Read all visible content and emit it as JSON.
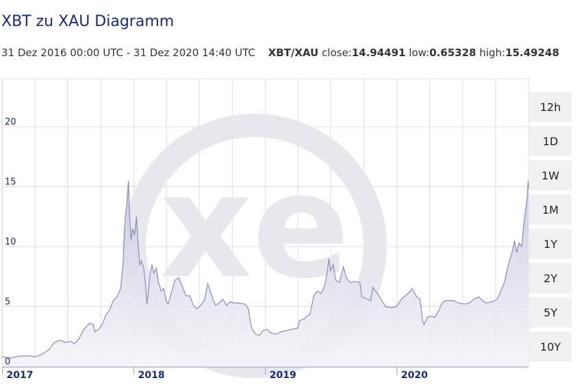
{
  "header": {
    "title": "XBT zu XAU Diagramm",
    "range": "31 Dez 2016 00:00 UTC - 31 Dez 2020 14:40 UTC",
    "pair": "XBT/XAU",
    "close_label": "close:",
    "close_value": "14.94491",
    "low_label": "low:",
    "low_value": "0.65328",
    "high_label": "high:",
    "high_value": "15.49248"
  },
  "range_buttons": [
    "12h",
    "1D",
    "1W",
    "1M",
    "1Y",
    "2Y",
    "5Y",
    "10Y"
  ],
  "colors": {
    "line": "#8e93b8",
    "fill_top": "#c9cbe0",
    "fill_bottom": "#f4f4f8",
    "grid": "#dcdcdc",
    "axis_text": "#1a2a7a",
    "watermark": "#e7e7ee"
  },
  "watermark_icon": "xe-logo",
  "chart_data": {
    "type": "area",
    "title": "XBT zu XAU Diagramm",
    "xlabel": "",
    "ylabel": "",
    "ylim": [
      0,
      24
    ],
    "xlim": [
      "2016-12-31",
      "2020-12-31"
    ],
    "y_ticks": [
      0,
      5,
      10,
      15,
      20
    ],
    "x_tick_labels": [
      {
        "label": "2017",
        "date": "2017-01-01"
      },
      {
        "label": "2018",
        "date": "2018-01-01"
      },
      {
        "label": "2019",
        "date": "2019-01-01"
      },
      {
        "label": "2020",
        "date": "2020-01-01"
      }
    ],
    "grid": true,
    "series": [
      {
        "points": [
          [
            "2016-12-31",
            0.82
          ],
          [
            "2017-01-20",
            0.7
          ],
          [
            "2017-02-15",
            0.85
          ],
          [
            "2017-03-15",
            0.9
          ],
          [
            "2017-04-01",
            0.8
          ],
          [
            "2017-04-20",
            1.0
          ],
          [
            "2017-05-10",
            1.4
          ],
          [
            "2017-05-25",
            2.0
          ],
          [
            "2017-06-10",
            2.2
          ],
          [
            "2017-06-25",
            2.0
          ],
          [
            "2017-07-10",
            2.1
          ],
          [
            "2017-07-20",
            1.9
          ],
          [
            "2017-08-01",
            2.3
          ],
          [
            "2017-08-15",
            3.1
          ],
          [
            "2017-08-30",
            3.6
          ],
          [
            "2017-09-10",
            3.5
          ],
          [
            "2017-09-15",
            2.9
          ],
          [
            "2017-09-25",
            3.1
          ],
          [
            "2017-10-05",
            3.5
          ],
          [
            "2017-10-15",
            4.3
          ],
          [
            "2017-10-25",
            4.7
          ],
          [
            "2017-11-05",
            5.5
          ],
          [
            "2017-11-15",
            5.8
          ],
          [
            "2017-11-25",
            6.5
          ],
          [
            "2017-12-02",
            8.7
          ],
          [
            "2017-12-08",
            12.5
          ],
          [
            "2017-12-12",
            13.5
          ],
          [
            "2017-12-17",
            15.5
          ],
          [
            "2017-12-20",
            12.5
          ],
          [
            "2017-12-24",
            10.5
          ],
          [
            "2017-12-28",
            11.5
          ],
          [
            "2018-01-03",
            11.0
          ],
          [
            "2018-01-08",
            12.5
          ],
          [
            "2018-01-12",
            10.5
          ],
          [
            "2018-01-17",
            8.5
          ],
          [
            "2018-01-22",
            8.8
          ],
          [
            "2018-01-28",
            8.2
          ],
          [
            "2018-02-02",
            6.8
          ],
          [
            "2018-02-06",
            5.2
          ],
          [
            "2018-02-10",
            6.2
          ],
          [
            "2018-02-15",
            7.8
          ],
          [
            "2018-02-20",
            8.5
          ],
          [
            "2018-02-25",
            7.8
          ],
          [
            "2018-03-04",
            8.2
          ],
          [
            "2018-03-10",
            7.0
          ],
          [
            "2018-03-18",
            6.3
          ],
          [
            "2018-03-25",
            6.5
          ],
          [
            "2018-04-01",
            5.4
          ],
          [
            "2018-04-06",
            5.2
          ],
          [
            "2018-04-15",
            6.2
          ],
          [
            "2018-04-25",
            7.2
          ],
          [
            "2018-05-05",
            7.4
          ],
          [
            "2018-05-15",
            6.7
          ],
          [
            "2018-05-25",
            5.9
          ],
          [
            "2018-06-05",
            5.9
          ],
          [
            "2018-06-15",
            5.1
          ],
          [
            "2018-06-25",
            4.8
          ],
          [
            "2018-07-05",
            5.1
          ],
          [
            "2018-07-15",
            5.5
          ],
          [
            "2018-07-25",
            6.9
          ],
          [
            "2018-08-05",
            5.9
          ],
          [
            "2018-08-15",
            5.1
          ],
          [
            "2018-08-25",
            5.3
          ],
          [
            "2018-09-05",
            5.6
          ],
          [
            "2018-09-15",
            5.1
          ],
          [
            "2018-09-25",
            5.4
          ],
          [
            "2018-10-05",
            5.3
          ],
          [
            "2018-10-20",
            5.3
          ],
          [
            "2018-11-05",
            5.2
          ],
          [
            "2018-11-15",
            4.8
          ],
          [
            "2018-11-20",
            3.7
          ],
          [
            "2018-11-25",
            3.1
          ],
          [
            "2018-12-05",
            2.7
          ],
          [
            "2018-12-15",
            2.6
          ],
          [
            "2018-12-25",
            3.0
          ],
          [
            "2019-01-05",
            3.1
          ],
          [
            "2019-01-15",
            2.8
          ],
          [
            "2019-01-30",
            2.7
          ],
          [
            "2019-02-15",
            2.9
          ],
          [
            "2019-03-01",
            3.0
          ],
          [
            "2019-03-15",
            3.1
          ],
          [
            "2019-04-01",
            3.2
          ],
          [
            "2019-04-05",
            3.8
          ],
          [
            "2019-04-20",
            4.0
          ],
          [
            "2019-05-05",
            4.4
          ],
          [
            "2019-05-15",
            5.9
          ],
          [
            "2019-05-25",
            6.3
          ],
          [
            "2019-06-05",
            6.1
          ],
          [
            "2019-06-15",
            6.8
          ],
          [
            "2019-06-22",
            8.0
          ],
          [
            "2019-06-26",
            9.0
          ],
          [
            "2019-07-01",
            8.0
          ],
          [
            "2019-07-08",
            8.5
          ],
          [
            "2019-07-15",
            7.2
          ],
          [
            "2019-07-25",
            7.0
          ],
          [
            "2019-08-05",
            8.3
          ],
          [
            "2019-08-15",
            7.3
          ],
          [
            "2019-08-25",
            7.0
          ],
          [
            "2019-09-05",
            7.1
          ],
          [
            "2019-09-20",
            7.0
          ],
          [
            "2019-09-25",
            5.8
          ],
          [
            "2019-10-05",
            5.7
          ],
          [
            "2019-10-20",
            5.5
          ],
          [
            "2019-10-26",
            6.6
          ],
          [
            "2019-11-05",
            6.2
          ],
          [
            "2019-11-20",
            5.5
          ],
          [
            "2019-11-30",
            5.0
          ],
          [
            "2019-12-15",
            4.9
          ],
          [
            "2019-12-31",
            5.0
          ],
          [
            "2020-01-10",
            5.5
          ],
          [
            "2020-01-20",
            5.8
          ],
          [
            "2020-02-01",
            6.1
          ],
          [
            "2020-02-12",
            6.5
          ],
          [
            "2020-02-25",
            5.8
          ],
          [
            "2020-03-05",
            5.6
          ],
          [
            "2020-03-12",
            3.8
          ],
          [
            "2020-03-16",
            3.5
          ],
          [
            "2020-03-25",
            4.1
          ],
          [
            "2020-04-05",
            4.2
          ],
          [
            "2020-04-15",
            4.1
          ],
          [
            "2020-04-25",
            4.6
          ],
          [
            "2020-05-05",
            5.3
          ],
          [
            "2020-05-15",
            5.5
          ],
          [
            "2020-05-25",
            5.5
          ],
          [
            "2020-06-05",
            5.5
          ],
          [
            "2020-06-20",
            5.3
          ],
          [
            "2020-07-05",
            5.2
          ],
          [
            "2020-07-20",
            5.3
          ],
          [
            "2020-08-01",
            5.6
          ],
          [
            "2020-08-15",
            5.8
          ],
          [
            "2020-08-25",
            5.5
          ],
          [
            "2020-09-05",
            5.3
          ],
          [
            "2020-09-20",
            5.4
          ],
          [
            "2020-10-05",
            5.6
          ],
          [
            "2020-10-15",
            6.3
          ],
          [
            "2020-10-25",
            7.0
          ],
          [
            "2020-11-05",
            8.5
          ],
          [
            "2020-11-15",
            9.5
          ],
          [
            "2020-11-22",
            10.5
          ],
          [
            "2020-11-28",
            9.5
          ],
          [
            "2020-12-05",
            10.3
          ],
          [
            "2020-12-12",
            10.0
          ],
          [
            "2020-12-18",
            12.0
          ],
          [
            "2020-12-24",
            13.3
          ],
          [
            "2020-12-28",
            14.3
          ],
          [
            "2020-12-30",
            15.5
          ],
          [
            "2020-12-31",
            14.9
          ]
        ]
      }
    ]
  }
}
